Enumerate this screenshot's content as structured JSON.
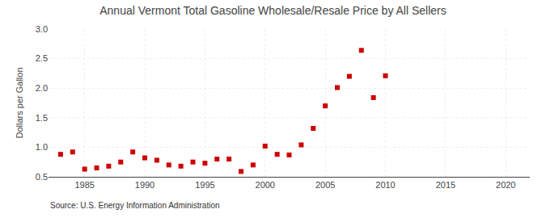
{
  "chart_data": {
    "type": "scatter",
    "title": "Annual Vermont Total Gasoline Wholesale/Resale Price by All Sellers",
    "ylabel": "Dollars per Gallon",
    "annotations": [
      "Source: U.S. Energy Information Administration"
    ],
    "x": [
      1983,
      1984,
      1985,
      1986,
      1987,
      1988,
      1989,
      1990,
      1991,
      1992,
      1993,
      1994,
      1995,
      1996,
      1997,
      1998,
      1999,
      2000,
      2001,
      2002,
      2003,
      2004,
      2005,
      2006,
      2007,
      2008,
      2009,
      2010
    ],
    "values": [
      0.88,
      0.92,
      0.63,
      0.65,
      0.68,
      0.75,
      0.92,
      0.82,
      0.78,
      0.7,
      0.68,
      0.75,
      0.73,
      0.8,
      0.8,
      0.59,
      0.7,
      1.02,
      0.88,
      0.87,
      1.04,
      1.32,
      1.7,
      2.01,
      2.2,
      2.64,
      1.84,
      2.21
    ],
    "color": "#cc0000",
    "marker": "square",
    "xlim": [
      1982,
      2022
    ],
    "xticks": [
      1985,
      1990,
      1995,
      2000,
      2005,
      2010,
      2015,
      2020
    ],
    "ylim": [
      0.5,
      3.0
    ],
    "yticks": [
      0.5,
      {
        "value": 1.0,
        "label": "1.0"
      },
      1.5,
      {
        "value": 2.0,
        "label": "2.0"
      },
      2.5,
      {
        "value": 3.0,
        "label": "3.0"
      }
    ],
    "grid": true
  }
}
